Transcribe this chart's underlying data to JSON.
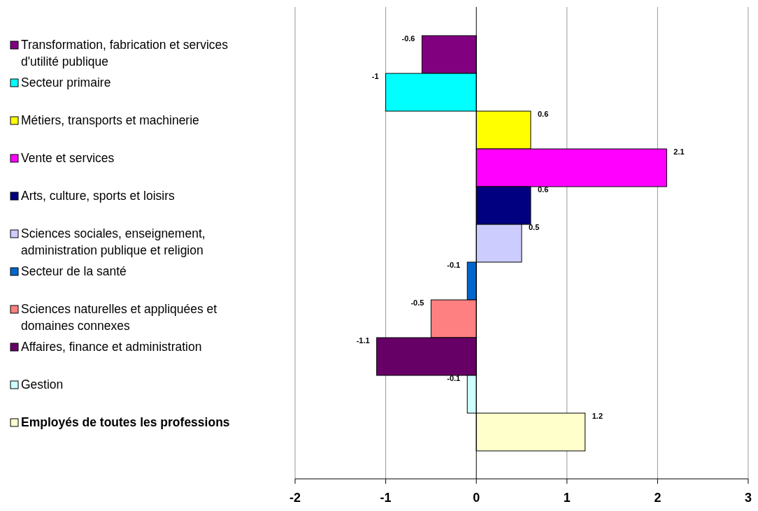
{
  "chart_data": {
    "type": "bar",
    "orientation": "horizontal",
    "categories": [
      "Transformation, fabrication et services d'utilité publique",
      "Secteur primaire",
      "Métiers, transports et machinerie",
      "Vente et services",
      "Arts, culture, sports et loisirs",
      "Sciences sociales, enseignement, administration publique et religion",
      "Secteur de la santé",
      "Sciences naturelles et appliquées et domaines connexes",
      "Affaires, finance et administration",
      "Gestion",
      "Employés de toutes les professions"
    ],
    "values": [
      -0.6,
      -1,
      0.6,
      2.1,
      0.6,
      0.5,
      -0.1,
      -0.5,
      -1.1,
      -0.1,
      1.2
    ],
    "colors": [
      "#800080",
      "#00ffff",
      "#ffff00",
      "#ff00ff",
      "#000080",
      "#ccccff",
      "#0066cc",
      "#ff8080",
      "#660066",
      "#ccffff",
      "#ffffcc"
    ],
    "xlim": [
      -2,
      3
    ],
    "xticks": [
      -2,
      -1,
      0,
      1,
      2,
      3
    ],
    "grid": "x",
    "data_labels": true
  }
}
